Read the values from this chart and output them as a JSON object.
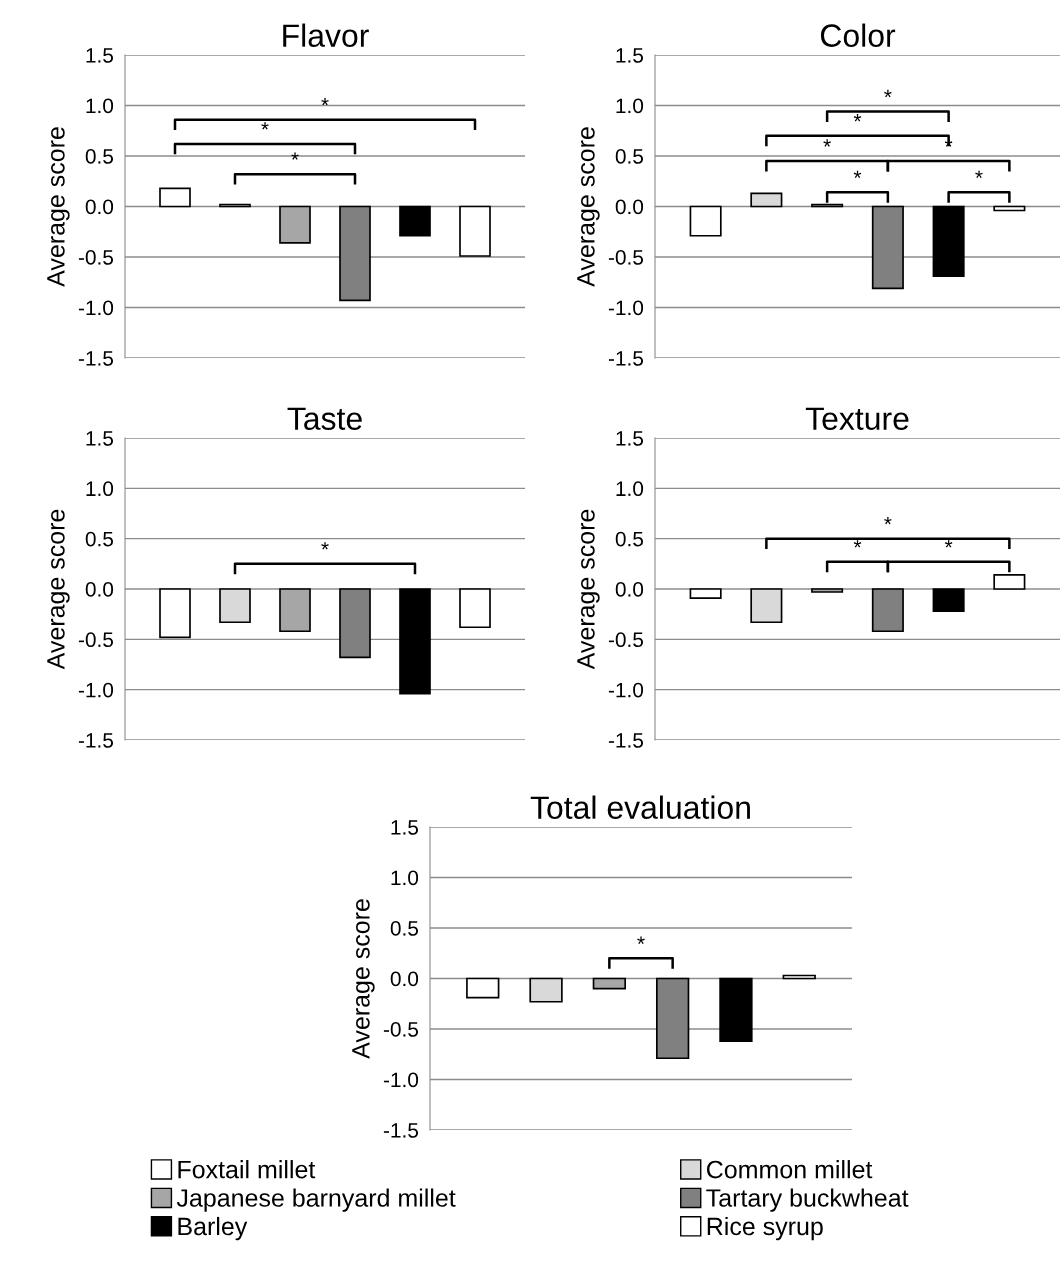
{
  "chart_data": [
    {
      "type": "bar",
      "title": "Flavor",
      "ylabel": "Average score",
      "categories": [
        null
      ],
      "ylim": [
        -1.5,
        1.5
      ],
      "yticks": [
        {
          "value": 1.5,
          "label": "1.5"
        },
        {
          "value": 1.0,
          "label": "1.0"
        },
        {
          "value": 0.5,
          "label": "0.5"
        },
        {
          "value": 0.0,
          "label": "0.0"
        },
        {
          "value": -0.5,
          "label": "-0.5"
        },
        {
          "value": -1.0,
          "label": "-1.0"
        },
        {
          "value": -1.5,
          "label": "-1.5"
        }
      ],
      "grid": "y",
      "legend": false,
      "annotations": [
        "*",
        "*",
        "*"
      ],
      "series": [
        {
          "color": "#ffffff",
          "values": [
            0.18
          ]
        },
        {
          "color": "#d9d9d9",
          "values": [
            0.02
          ]
        },
        {
          "color": "#a6a6a6",
          "values": [
            -0.36
          ]
        },
        {
          "color": "#808080",
          "values": [
            -0.93
          ]
        },
        {
          "color": "#000000",
          "values": [
            -0.29
          ]
        },
        {
          "color": "#ffffff",
          "values": [
            -0.49
          ]
        }
      ]
    },
    {
      "type": "bar",
      "title": "Color",
      "ylabel": "Average score",
      "categories": [
        null
      ],
      "ylim": [
        -1.5,
        1.5
      ],
      "yticks": [
        {
          "value": 1.5,
          "label": "1.5"
        },
        {
          "value": 1.0,
          "label": "1.0"
        },
        {
          "value": 0.5,
          "label": "0.5"
        },
        {
          "value": 0.0,
          "label": "0.0"
        },
        {
          "value": -0.5,
          "label": "-0.5"
        },
        {
          "value": -1.0,
          "label": "-1.0"
        },
        {
          "value": -1.5,
          "label": "-1.5"
        }
      ],
      "grid": "y",
      "legend": false,
      "annotations": [
        "*",
        "*",
        "*",
        "*",
        "*",
        "*"
      ],
      "series": [
        {
          "color": "#ffffff",
          "values": [
            -0.29
          ]
        },
        {
          "color": "#d9d9d9",
          "values": [
            0.13
          ]
        },
        {
          "color": "#a6a6a6",
          "values": [
            0.02
          ]
        },
        {
          "color": "#808080",
          "values": [
            -0.81
          ]
        },
        {
          "color": "#000000",
          "values": [
            -0.69
          ]
        },
        {
          "color": "#ffffff",
          "values": [
            -0.04
          ]
        }
      ]
    },
    {
      "type": "bar",
      "title": "Taste",
      "ylabel": "Average score",
      "categories": [
        null
      ],
      "ylim": [
        -1.5,
        1.5
      ],
      "yticks": [
        {
          "value": 1.5,
          "label": "1.5"
        },
        {
          "value": 1.0,
          "label": "1.0"
        },
        {
          "value": 0.5,
          "label": "0.5"
        },
        {
          "value": 0.0,
          "label": "0.0"
        },
        {
          "value": -0.5,
          "label": "-0.5"
        },
        {
          "value": -1.0,
          "label": "-1.0"
        },
        {
          "value": -1.5,
          "label": "-1.5"
        }
      ],
      "grid": "y",
      "legend": false,
      "annotations": [
        "*"
      ],
      "series": [
        {
          "color": "#ffffff",
          "values": [
            -0.48
          ]
        },
        {
          "color": "#d9d9d9",
          "values": [
            -0.33
          ]
        },
        {
          "color": "#a6a6a6",
          "values": [
            -0.42
          ]
        },
        {
          "color": "#808080",
          "values": [
            -0.68
          ]
        },
        {
          "color": "#000000",
          "values": [
            -1.04
          ]
        },
        {
          "color": "#ffffff",
          "values": [
            -0.38
          ]
        }
      ]
    },
    {
      "type": "bar",
      "title": "Texture",
      "ylabel": "Average score",
      "categories": [
        null
      ],
      "ylim": [
        -1.5,
        1.5
      ],
      "yticks": [
        {
          "value": 1.5,
          "label": "1.5"
        },
        {
          "value": 1.0,
          "label": "1.0"
        },
        {
          "value": 0.5,
          "label": "0.5"
        },
        {
          "value": 0.0,
          "label": "0.0"
        },
        {
          "value": -0.5,
          "label": "-0.5"
        },
        {
          "value": -1.0,
          "label": "-1.0"
        },
        {
          "value": -1.5,
          "label": "-1.5"
        }
      ],
      "grid": "y",
      "legend": false,
      "annotations": [
        "*",
        "*",
        "*"
      ],
      "series": [
        {
          "color": "#ffffff",
          "values": [
            -0.09
          ]
        },
        {
          "color": "#d9d9d9",
          "values": [
            -0.33
          ]
        },
        {
          "color": "#a6a6a6",
          "values": [
            -0.03
          ]
        },
        {
          "color": "#808080",
          "values": [
            -0.42
          ]
        },
        {
          "color": "#000000",
          "values": [
            -0.22
          ]
        },
        {
          "color": "#ffffff",
          "values": [
            0.14
          ]
        }
      ]
    },
    {
      "type": "bar",
      "title": "Total evaluation",
      "ylabel": "Average score",
      "categories": [
        null
      ],
      "ylim": [
        -1.5,
        1.5
      ],
      "yticks": [
        {
          "value": 1.5,
          "label": "1.5"
        },
        {
          "value": 1.0,
          "label": "1.0"
        },
        {
          "value": 0.5,
          "label": "0.5"
        },
        {
          "value": 0.0,
          "label": "0.0"
        },
        {
          "value": -0.5,
          "label": "-0.5"
        },
        {
          "value": -1.0,
          "label": "-1.0"
        },
        {
          "value": -1.5,
          "label": "-1.5"
        }
      ],
      "grid": "y",
      "legend": "bottom",
      "annotations": [
        "*"
      ],
      "series": [
        {
          "name": "Foxtail millet",
          "color": "#ffffff",
          "values": [
            -0.19
          ]
        },
        {
          "name": "Common millet",
          "color": "#d9d9d9",
          "values": [
            -0.23
          ]
        },
        {
          "name": "Japanese barnyard millet",
          "color": "#a6a6a6",
          "values": [
            -0.1
          ]
        },
        {
          "name": "Tartary buckwheat",
          "color": "#808080",
          "values": [
            -0.79
          ]
        },
        {
          "name": "Barley",
          "color": "#000000",
          "values": [
            -0.62
          ]
        },
        {
          "name": "Rice syrup",
          "color": "#ffffff",
          "values": [
            0.03
          ]
        }
      ]
    }
  ]
}
